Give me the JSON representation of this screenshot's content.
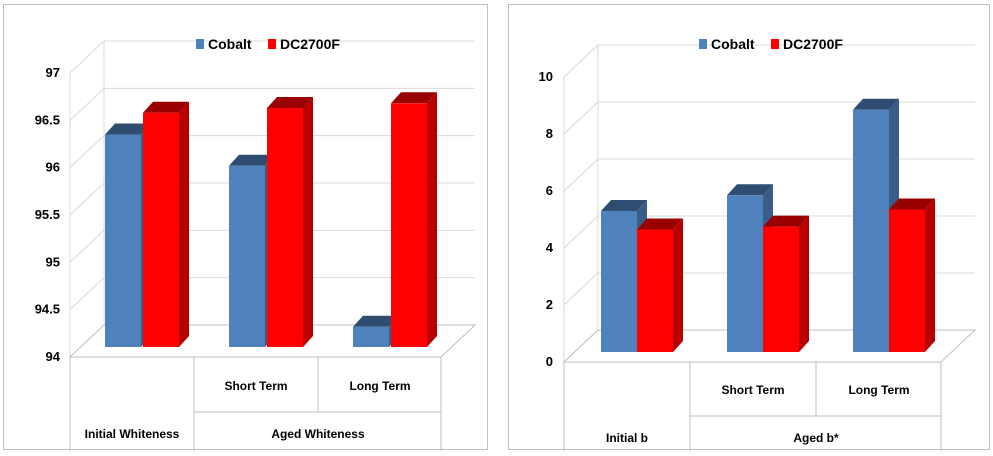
{
  "chart_data": [
    {
      "type": "bar",
      "legend": [
        {
          "name": "Cobalt",
          "color": "#4f81bd"
        },
        {
          "name": "DC2700F",
          "color": "#ff0000"
        }
      ],
      "legend_position": "top",
      "categories": [
        {
          "label": "",
          "group": "Initial Whiteness"
        },
        {
          "label": "Short Term",
          "group": "Aged Whiteness"
        },
        {
          "label": "Long Term",
          "group": "Aged Whiteness"
        }
      ],
      "groups": [
        "Initial Whiteness",
        "Aged Whiteness"
      ],
      "series": [
        {
          "name": "Cobalt",
          "values": [
            96.35,
            96.02,
            94.32
          ]
        },
        {
          "name": "DC2700F",
          "values": [
            96.58,
            96.63,
            96.68
          ]
        }
      ],
      "ylim": [
        94,
        97
      ],
      "yticks": [
        "94",
        "94.5",
        "95",
        "95.5",
        "96",
        "96.5",
        "97"
      ],
      "grid": true
    },
    {
      "type": "bar",
      "legend": [
        {
          "name": "Cobalt",
          "color": "#4f81bd"
        },
        {
          "name": "DC2700F",
          "color": "#ff0000"
        }
      ],
      "legend_position": "top",
      "categories": [
        {
          "label": "",
          "group": "Initial b"
        },
        {
          "label": "Short Term",
          "group": "Aged b*"
        },
        {
          "label": "Long Term",
          "group": "Aged b*"
        }
      ],
      "groups": [
        "Initial b",
        "Aged b*"
      ],
      "series": [
        {
          "name": "Cobalt",
          "values": [
            5.3,
            5.85,
            8.85
          ]
        },
        {
          "name": "DC2700F",
          "values": [
            4.65,
            4.75,
            5.35
          ]
        }
      ],
      "ylim": [
        0,
        10
      ],
      "yticks": [
        "0",
        "2",
        "4",
        "6",
        "8",
        "10"
      ],
      "grid": true
    }
  ]
}
